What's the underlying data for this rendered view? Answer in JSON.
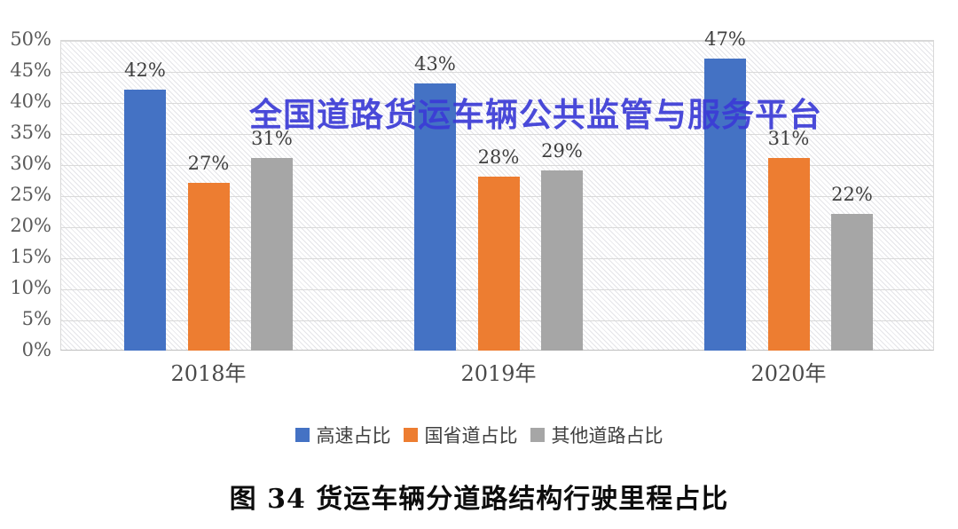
{
  "watermark": {
    "text": "全国道路货运车辆公共监管与服务平台",
    "color": "#3B3BD6"
  },
  "caption": {
    "text": "图 34 货运车辆分道路结构行驶里程占比"
  },
  "colors": {
    "highway_blue": "#4472C4",
    "national_orange": "#ED7D31",
    "other_gray": "#A6A6A6",
    "gridline": "#D9D9D9",
    "tick_label": "#595959",
    "data_label": "#3F3F3F"
  },
  "chart_data": {
    "type": "bar",
    "title": "",
    "categories": [
      "2018年",
      "2019年",
      "2020年"
    ],
    "series": [
      {
        "name": "高速占比",
        "color": "#4472C4",
        "values": [
          42,
          43,
          47
        ]
      },
      {
        "name": "国省道占比",
        "color": "#ED7D31",
        "values": [
          27,
          28,
          31
        ]
      },
      {
        "name": "其他道路占比",
        "color": "#A6A6A6",
        "values": [
          31,
          29,
          22
        ]
      }
    ],
    "data_label_format": "{v}%",
    "data_labels": [
      [
        "42%",
        "43%",
        "47%"
      ],
      [
        "27%",
        "28%",
        "31%"
      ],
      [
        "31%",
        "29%",
        "22%"
      ]
    ],
    "xlabel": "",
    "ylabel": "",
    "y_axis": {
      "min": 0,
      "max": 50,
      "step": 5,
      "ticks": [
        "0%",
        "5%",
        "10%",
        "15%",
        "20%",
        "25%",
        "30%",
        "35%",
        "40%",
        "45%",
        "50%"
      ]
    },
    "x_axis": {
      "labels": [
        "2018年",
        "2019年",
        "2020年"
      ]
    },
    "legend": {
      "position": "bottom",
      "entries": [
        "高速占比",
        "国省道占比",
        "其他道路占比"
      ]
    },
    "grid": "horizontal",
    "plot_background": "diagonal-hatch"
  }
}
